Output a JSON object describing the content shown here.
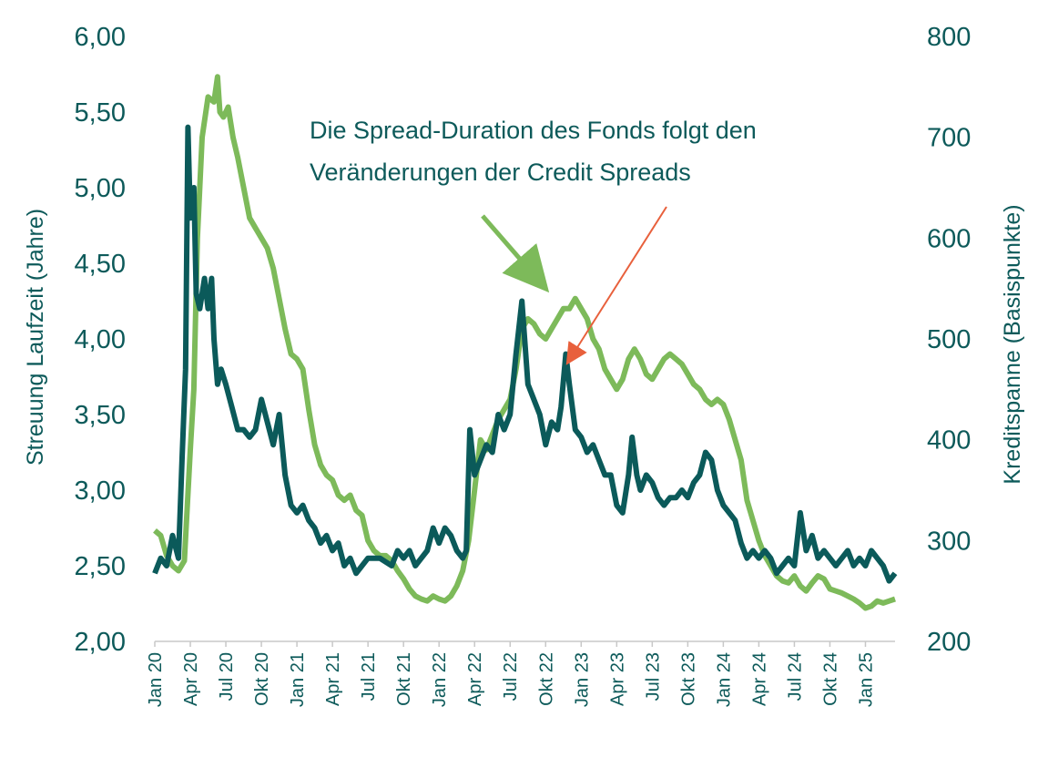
{
  "chart_data": {
    "type": "line",
    "y_left_label": "Streuung Laufzeit (Jahre)",
    "y_right_label": "Kreditspanne (Basispunkte)",
    "y_left_range": [
      2.0,
      6.0
    ],
    "y_left_ticks": [
      "2,00",
      "2,50",
      "3,00",
      "3,50",
      "4,00",
      "4,50",
      "5,00",
      "5,50",
      "6,00"
    ],
    "y_right_range": [
      200,
      800
    ],
    "y_right_ticks": [
      "200",
      "300",
      "400",
      "500",
      "600",
      "700",
      "800"
    ],
    "x_range_months": [
      0,
      62.5
    ],
    "x_tick_labels": [
      "Jan 20",
      "Apr 20",
      "Jul 20",
      "Okt 20",
      "Jan 21",
      "Apr 21",
      "Jul 21",
      "Okt 21",
      "Jan 22",
      "Apr 22",
      "Jul 22",
      "Okt 22",
      "Jan 23",
      "Apr 23",
      "Jul 23",
      "Okt 23",
      "Jan 24",
      "Apr 24",
      "Jul 24",
      "Okt 24",
      "Jan 25"
    ],
    "annotation_lines": [
      "Die Spread-Duration des Fonds folgt den",
      "Veränderungen der Credit Spreads"
    ],
    "grid": false,
    "legend": "none",
    "colors": {
      "dark_series": "#0b5a5a",
      "light_series": "#7dba5a",
      "red_arrow": "#e8603c",
      "text": "#0d5a5a"
    },
    "series": [
      {
        "axis": "left",
        "color": "#0b5a5a",
        "points": [
          [
            0,
            2.45
          ],
          [
            0.5,
            2.55
          ],
          [
            1.0,
            2.5
          ],
          [
            1.5,
            2.7
          ],
          [
            2.0,
            2.55
          ],
          [
            2.3,
            3.2
          ],
          [
            2.6,
            3.8
          ],
          [
            2.8,
            5.4
          ],
          [
            3.0,
            4.8
          ],
          [
            3.3,
            5.0
          ],
          [
            3.5,
            4.3
          ],
          [
            3.8,
            4.2
          ],
          [
            4.2,
            4.4
          ],
          [
            4.5,
            4.2
          ],
          [
            4.8,
            4.4
          ],
          [
            5.0,
            4.0
          ],
          [
            5.3,
            3.7
          ],
          [
            5.6,
            3.8
          ],
          [
            6.0,
            3.7
          ],
          [
            6.5,
            3.55
          ],
          [
            7.0,
            3.4
          ],
          [
            7.5,
            3.4
          ],
          [
            8.0,
            3.35
          ],
          [
            8.5,
            3.4
          ],
          [
            9.0,
            3.6
          ],
          [
            9.5,
            3.45
          ],
          [
            10.0,
            3.3
          ],
          [
            10.5,
            3.5
          ],
          [
            11.0,
            3.1
          ],
          [
            11.5,
            2.9
          ],
          [
            12.0,
            2.85
          ],
          [
            12.5,
            2.9
          ],
          [
            13.0,
            2.8
          ],
          [
            13.5,
            2.75
          ],
          [
            14.0,
            2.65
          ],
          [
            14.5,
            2.7
          ],
          [
            15.0,
            2.6
          ],
          [
            15.5,
            2.65
          ],
          [
            16.0,
            2.5
          ],
          [
            16.5,
            2.55
          ],
          [
            17.0,
            2.45
          ],
          [
            18.0,
            2.55
          ],
          [
            19.0,
            2.55
          ],
          [
            20.0,
            2.5
          ],
          [
            20.5,
            2.6
          ],
          [
            21.0,
            2.55
          ],
          [
            21.5,
            2.6
          ],
          [
            22.0,
            2.5
          ],
          [
            22.5,
            2.55
          ],
          [
            23.0,
            2.6
          ],
          [
            23.5,
            2.75
          ],
          [
            24.0,
            2.65
          ],
          [
            24.5,
            2.75
          ],
          [
            25.0,
            2.7
          ],
          [
            25.5,
            2.6
          ],
          [
            26.0,
            2.55
          ],
          [
            26.3,
            2.6
          ],
          [
            26.6,
            3.4
          ],
          [
            27.0,
            3.1
          ],
          [
            27.5,
            3.2
          ],
          [
            28.0,
            3.3
          ],
          [
            28.5,
            3.25
          ],
          [
            29.0,
            3.5
          ],
          [
            29.5,
            3.4
          ],
          [
            30.0,
            3.5
          ],
          [
            30.5,
            3.9
          ],
          [
            31.0,
            4.25
          ],
          [
            31.5,
            3.7
          ],
          [
            32.0,
            3.6
          ],
          [
            32.5,
            3.5
          ],
          [
            33.0,
            3.3
          ],
          [
            33.5,
            3.45
          ],
          [
            34.0,
            3.4
          ],
          [
            34.3,
            3.55
          ],
          [
            34.7,
            3.9
          ],
          [
            35.0,
            3.7
          ],
          [
            35.5,
            3.4
          ],
          [
            36.0,
            3.35
          ],
          [
            36.5,
            3.25
          ],
          [
            37.0,
            3.3
          ],
          [
            37.5,
            3.2
          ],
          [
            38.0,
            3.1
          ],
          [
            38.5,
            3.1
          ],
          [
            39.0,
            2.9
          ],
          [
            39.5,
            2.85
          ],
          [
            40.0,
            3.1
          ],
          [
            40.3,
            3.35
          ],
          [
            40.7,
            3.1
          ],
          [
            41.0,
            3.0
          ],
          [
            41.5,
            3.1
          ],
          [
            42.0,
            3.05
          ],
          [
            42.5,
            2.95
          ],
          [
            43.0,
            2.9
          ],
          [
            43.5,
            2.95
          ],
          [
            44.0,
            2.95
          ],
          [
            44.5,
            3.0
          ],
          [
            45.0,
            2.95
          ],
          [
            45.5,
            3.05
          ],
          [
            46.0,
            3.1
          ],
          [
            46.5,
            3.25
          ],
          [
            47.0,
            3.2
          ],
          [
            47.5,
            3.0
          ],
          [
            48.0,
            2.9
          ],
          [
            48.5,
            2.85
          ],
          [
            49.0,
            2.8
          ],
          [
            49.5,
            2.65
          ],
          [
            50.0,
            2.55
          ],
          [
            50.5,
            2.6
          ],
          [
            51.0,
            2.55
          ],
          [
            51.5,
            2.6
          ],
          [
            52.0,
            2.55
          ],
          [
            52.5,
            2.45
          ],
          [
            53.0,
            2.5
          ],
          [
            53.5,
            2.55
          ],
          [
            54.0,
            2.5
          ],
          [
            54.5,
            2.85
          ],
          [
            55.0,
            2.6
          ],
          [
            55.5,
            2.7
          ],
          [
            56.0,
            2.55
          ],
          [
            56.5,
            2.6
          ],
          [
            57.0,
            2.55
          ],
          [
            57.5,
            2.5
          ],
          [
            58.0,
            2.55
          ],
          [
            58.5,
            2.6
          ],
          [
            59.0,
            2.5
          ],
          [
            59.5,
            2.55
          ],
          [
            60.0,
            2.5
          ],
          [
            60.5,
            2.6
          ],
          [
            61.0,
            2.55
          ],
          [
            61.5,
            2.5
          ],
          [
            62.0,
            2.4
          ],
          [
            62.5,
            2.45
          ]
        ]
      },
      {
        "axis": "right",
        "color": "#7dba5a",
        "points": [
          [
            0,
            310
          ],
          [
            0.5,
            305
          ],
          [
            1.0,
            285
          ],
          [
            1.5,
            275
          ],
          [
            2.0,
            270
          ],
          [
            2.5,
            280
          ],
          [
            3.0,
            390
          ],
          [
            3.3,
            450
          ],
          [
            3.6,
            600
          ],
          [
            4.0,
            700
          ],
          [
            4.5,
            740
          ],
          [
            5.0,
            735
          ],
          [
            5.3,
            760
          ],
          [
            5.5,
            725
          ],
          [
            5.8,
            720
          ],
          [
            6.2,
            730
          ],
          [
            6.6,
            700
          ],
          [
            7.0,
            680
          ],
          [
            7.5,
            650
          ],
          [
            8.0,
            620
          ],
          [
            8.5,
            610
          ],
          [
            9.0,
            600
          ],
          [
            9.5,
            590
          ],
          [
            10.0,
            570
          ],
          [
            10.5,
            540
          ],
          [
            11.0,
            510
          ],
          [
            11.5,
            485
          ],
          [
            12.0,
            480
          ],
          [
            12.5,
            470
          ],
          [
            13.0,
            430
          ],
          [
            13.5,
            395
          ],
          [
            14.0,
            375
          ],
          [
            14.5,
            365
          ],
          [
            15.0,
            360
          ],
          [
            15.5,
            345
          ],
          [
            16.0,
            340
          ],
          [
            16.5,
            345
          ],
          [
            17.0,
            330
          ],
          [
            17.5,
            325
          ],
          [
            18.0,
            300
          ],
          [
            18.5,
            290
          ],
          [
            19.0,
            285
          ],
          [
            19.5,
            285
          ],
          [
            20.0,
            280
          ],
          [
            20.5,
            270
          ],
          [
            21.0,
            262
          ],
          [
            21.5,
            252
          ],
          [
            22.0,
            245
          ],
          [
            22.5,
            242
          ],
          [
            23.0,
            240
          ],
          [
            23.5,
            245
          ],
          [
            24.0,
            242
          ],
          [
            24.5,
            240
          ],
          [
            25.0,
            245
          ],
          [
            25.5,
            255
          ],
          [
            26.0,
            270
          ],
          [
            26.5,
            300
          ],
          [
            27.0,
            350
          ],
          [
            27.5,
            400
          ],
          [
            28.0,
            390
          ],
          [
            28.5,
            405
          ],
          [
            29.0,
            420
          ],
          [
            29.5,
            430
          ],
          [
            30.0,
            440
          ],
          [
            30.5,
            470
          ],
          [
            31.0,
            510
          ],
          [
            31.5,
            520
          ],
          [
            32.0,
            515
          ],
          [
            32.5,
            505
          ],
          [
            33.0,
            500
          ],
          [
            33.5,
            510
          ],
          [
            34.0,
            520
          ],
          [
            34.5,
            530
          ],
          [
            35.0,
            530
          ],
          [
            35.5,
            540
          ],
          [
            36.0,
            530
          ],
          [
            36.5,
            520
          ],
          [
            37.0,
            500
          ],
          [
            37.5,
            490
          ],
          [
            38.0,
            470
          ],
          [
            38.5,
            460
          ],
          [
            39.0,
            450
          ],
          [
            39.5,
            460
          ],
          [
            40.0,
            480
          ],
          [
            40.5,
            490
          ],
          [
            41.0,
            480
          ],
          [
            41.5,
            465
          ],
          [
            42.0,
            460
          ],
          [
            42.5,
            470
          ],
          [
            43.0,
            480
          ],
          [
            43.5,
            485
          ],
          [
            44.0,
            480
          ],
          [
            44.5,
            475
          ],
          [
            45.0,
            465
          ],
          [
            45.5,
            455
          ],
          [
            46.0,
            450
          ],
          [
            46.5,
            440
          ],
          [
            47.0,
            435
          ],
          [
            47.5,
            440
          ],
          [
            48.0,
            435
          ],
          [
            48.5,
            420
          ],
          [
            49.0,
            400
          ],
          [
            49.5,
            380
          ],
          [
            50.0,
            340
          ],
          [
            50.5,
            320
          ],
          [
            51.0,
            300
          ],
          [
            51.5,
            285
          ],
          [
            52.0,
            275
          ],
          [
            52.5,
            265
          ],
          [
            53.0,
            260
          ],
          [
            53.5,
            258
          ],
          [
            54.0,
            265
          ],
          [
            54.5,
            255
          ],
          [
            55.0,
            250
          ],
          [
            55.5,
            258
          ],
          [
            56.0,
            265
          ],
          [
            56.5,
            262
          ],
          [
            57.0,
            252
          ],
          [
            57.5,
            250
          ],
          [
            58.0,
            248
          ],
          [
            58.5,
            245
          ],
          [
            59.0,
            242
          ],
          [
            59.5,
            238
          ],
          [
            60.0,
            233
          ],
          [
            60.5,
            235
          ],
          [
            61.0,
            240
          ],
          [
            61.5,
            238
          ],
          [
            62.0,
            240
          ],
          [
            62.5,
            242
          ]
        ]
      }
    ]
  }
}
